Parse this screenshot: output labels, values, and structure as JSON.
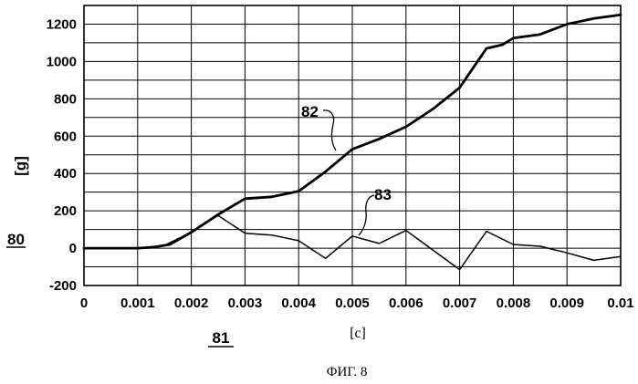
{
  "chart_data": {
    "type": "line",
    "title": "",
    "xlabel": "[c]",
    "ylabel": "[g]",
    "xlim": [
      0,
      0.01
    ],
    "ylim": [
      -200,
      1300
    ],
    "grid": true,
    "x_ticks": [
      "0",
      "0.001",
      "0.002",
      "0.003",
      "0.004",
      "0.005",
      "0.006",
      "0.007",
      "0.008",
      "0.009",
      "0.01"
    ],
    "y_ticks": [
      "-200",
      "0",
      "200",
      "400",
      "600",
      "800",
      "1000",
      "1200"
    ],
    "series": [
      {
        "name": "82",
        "x": [
          0,
          0.0005,
          0.001,
          0.0013,
          0.0016,
          0.002,
          0.0025,
          0.003,
          0.0035,
          0.004,
          0.0045,
          0.005,
          0.0055,
          0.006,
          0.0065,
          0.007,
          0.0075,
          0.0078,
          0.008,
          0.0085,
          0.009,
          0.0095,
          0.01
        ],
        "values": [
          0,
          0,
          0,
          5,
          20,
          85,
          180,
          265,
          275,
          305,
          410,
          530,
          585,
          650,
          745,
          860,
          1070,
          1090,
          1125,
          1145,
          1200,
          1230,
          1250
        ]
      },
      {
        "name": "83",
        "x": [
          0,
          0.001,
          0.0015,
          0.002,
          0.0025,
          0.003,
          0.0035,
          0.004,
          0.0045,
          0.005,
          0.0055,
          0.006,
          0.0065,
          0.007,
          0.0075,
          0.008,
          0.0085,
          0.009,
          0.0095,
          0.01
        ],
        "values": [
          0,
          0,
          15,
          85,
          175,
          80,
          70,
          40,
          -55,
          65,
          25,
          95,
          -10,
          -115,
          90,
          20,
          10,
          -25,
          -65,
          -45
        ]
      }
    ],
    "annotations": [
      "82",
      "83"
    ]
  },
  "labels": {
    "ref_figure": "80",
    "ref_axis": "81",
    "caption": "ФИГ. 8"
  }
}
